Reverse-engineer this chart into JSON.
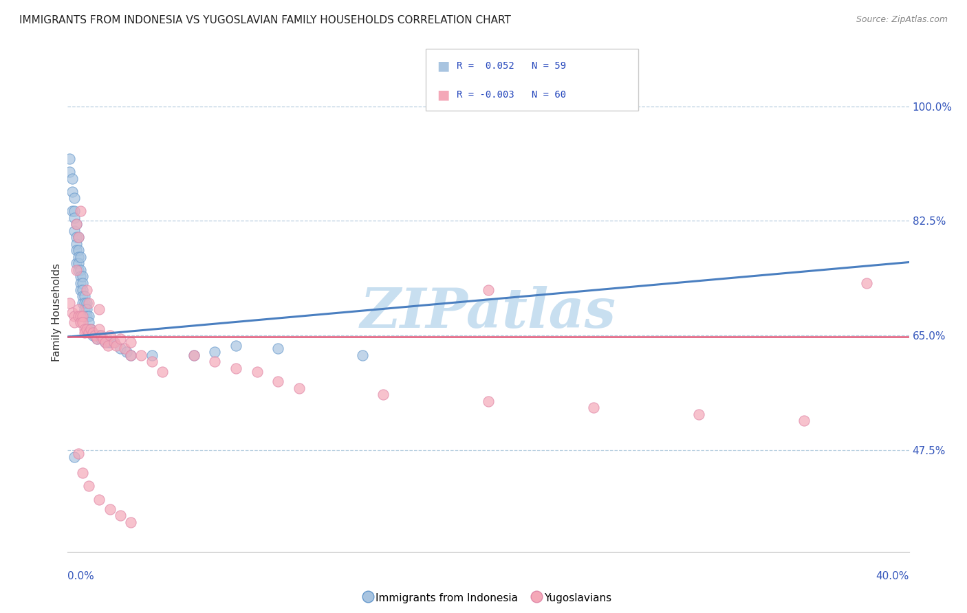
{
  "title": "IMMIGRANTS FROM INDONESIA VS YUGOSLAVIAN FAMILY HOUSEHOLDS CORRELATION CHART",
  "source": "Source: ZipAtlas.com",
  "ylabel": "Family Households",
  "ytick_labels": [
    "100.0%",
    "82.5%",
    "65.0%",
    "47.5%"
  ],
  "ytick_values": [
    1.0,
    0.825,
    0.65,
    0.475
  ],
  "legend_blue_r": "R =  0.052",
  "legend_blue_n": "N = 59",
  "legend_pink_r": "R = -0.003",
  "legend_pink_n": "N = 60",
  "legend_label_blue": "Immigrants from Indonesia",
  "legend_label_pink": "Yugoslavians",
  "blue_color": "#a8c4e0",
  "pink_color": "#f4a8b8",
  "blue_edge_color": "#6699cc",
  "pink_edge_color": "#e088a8",
  "blue_line_color": "#4a7fc0",
  "pink_line_color": "#e05a7a",
  "watermark": "ZIPatlas",
  "watermark_color": "#c8dff0",
  "xmin": 0.0,
  "xmax": 0.4,
  "ymin": 0.32,
  "ymax": 1.05,
  "blue_trend_x0": 0.0,
  "blue_trend_y0": 0.648,
  "blue_trend_x1": 0.4,
  "blue_trend_y1": 0.762,
  "pink_trend_y": 0.648,
  "blue_scatter_x": [
    0.001,
    0.001,
    0.002,
    0.002,
    0.002,
    0.003,
    0.003,
    0.003,
    0.003,
    0.004,
    0.004,
    0.004,
    0.004,
    0.004,
    0.005,
    0.005,
    0.005,
    0.005,
    0.005,
    0.006,
    0.006,
    0.006,
    0.006,
    0.006,
    0.007,
    0.007,
    0.007,
    0.007,
    0.007,
    0.008,
    0.008,
    0.008,
    0.008,
    0.009,
    0.009,
    0.009,
    0.01,
    0.01,
    0.01,
    0.011,
    0.012,
    0.013,
    0.014,
    0.015,
    0.016,
    0.018,
    0.019,
    0.02,
    0.022,
    0.025,
    0.028,
    0.03,
    0.04,
    0.06,
    0.07,
    0.08,
    0.1,
    0.14,
    0.003
  ],
  "blue_scatter_y": [
    0.92,
    0.9,
    0.89,
    0.87,
    0.84,
    0.86,
    0.84,
    0.83,
    0.81,
    0.82,
    0.8,
    0.79,
    0.78,
    0.76,
    0.8,
    0.78,
    0.77,
    0.76,
    0.75,
    0.77,
    0.75,
    0.74,
    0.73,
    0.72,
    0.74,
    0.73,
    0.72,
    0.71,
    0.7,
    0.71,
    0.7,
    0.69,
    0.68,
    0.7,
    0.69,
    0.68,
    0.68,
    0.67,
    0.66,
    0.66,
    0.65,
    0.65,
    0.645,
    0.65,
    0.645,
    0.64,
    0.64,
    0.64,
    0.64,
    0.63,
    0.625,
    0.62,
    0.62,
    0.62,
    0.625,
    0.635,
    0.63,
    0.62,
    0.465
  ],
  "pink_scatter_x": [
    0.001,
    0.002,
    0.003,
    0.003,
    0.004,
    0.004,
    0.005,
    0.005,
    0.005,
    0.006,
    0.006,
    0.006,
    0.007,
    0.007,
    0.008,
    0.008,
    0.009,
    0.009,
    0.01,
    0.01,
    0.011,
    0.012,
    0.013,
    0.014,
    0.015,
    0.015,
    0.016,
    0.017,
    0.018,
    0.019,
    0.02,
    0.022,
    0.023,
    0.025,
    0.027,
    0.03,
    0.03,
    0.035,
    0.04,
    0.045,
    0.06,
    0.07,
    0.08,
    0.09,
    0.1,
    0.11,
    0.15,
    0.2,
    0.25,
    0.3,
    0.35,
    0.38,
    0.005,
    0.007,
    0.01,
    0.015,
    0.02,
    0.025,
    0.03,
    0.2
  ],
  "pink_scatter_y": [
    0.7,
    0.685,
    0.68,
    0.67,
    0.82,
    0.75,
    0.8,
    0.69,
    0.68,
    0.84,
    0.68,
    0.67,
    0.68,
    0.67,
    0.66,
    0.655,
    0.72,
    0.66,
    0.7,
    0.655,
    0.66,
    0.655,
    0.65,
    0.645,
    0.69,
    0.66,
    0.65,
    0.645,
    0.64,
    0.635,
    0.65,
    0.64,
    0.635,
    0.645,
    0.63,
    0.64,
    0.62,
    0.62,
    0.61,
    0.595,
    0.62,
    0.61,
    0.6,
    0.595,
    0.58,
    0.57,
    0.56,
    0.55,
    0.54,
    0.53,
    0.52,
    0.73,
    0.47,
    0.44,
    0.42,
    0.4,
    0.385,
    0.375,
    0.365,
    0.72
  ]
}
